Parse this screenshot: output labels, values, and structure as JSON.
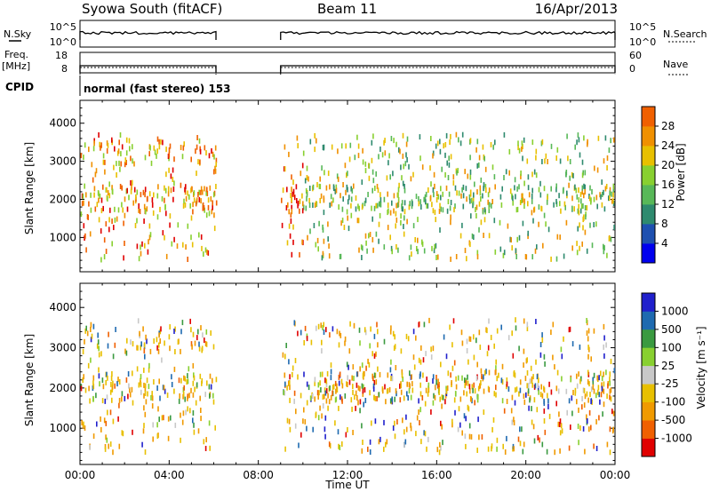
{
  "header": {
    "title": "Syowa South (fitACF)",
    "beam": "Beam 11",
    "date": "16/Apr/2013"
  },
  "params": {
    "nsky_label": "N.Sky",
    "nsky_ticks": [
      "10^5",
      "10^0"
    ],
    "nsearch_label": "N.Search",
    "nsearch_ticks": [
      "10^5",
      "10^0"
    ],
    "freq_label_1": "Freq.",
    "freq_label_2": "[MHz]",
    "freq_ticks": [
      "18",
      "8"
    ],
    "nave_label": "Nave",
    "nave_ticks": [
      "60",
      "0"
    ],
    "cpid_label": "CPID",
    "cpid_value": "normal (fast stereo) 153"
  },
  "colors": {
    "power_scale": [
      "#0000ee",
      "#1e50b0",
      "#2e8a6e",
      "#58b858",
      "#88d030",
      "#e8c000",
      "#f09000",
      "#f06000",
      "#e00000"
    ],
    "velocity_scale": [
      "#e00000",
      "#f06000",
      "#f09a00",
      "#e8c000",
      "#c8c8c8",
      "#88d030",
      "#3a9a40",
      "#1e6ab0",
      "#2020cc"
    ]
  },
  "chart_data": [
    {
      "type": "scatter",
      "name": "power",
      "ylabel": "Slant Range [km]",
      "xlabel": "Time UT",
      "xlim": [
        0,
        24
      ],
      "ylim": [
        100,
        4600
      ],
      "yticks": [
        "1000",
        "2000",
        "3000",
        "4000"
      ],
      "xticks": [
        "00:00",
        "04:00",
        "08:00",
        "12:00",
        "16:00",
        "20:00",
        "00:00"
      ],
      "data_gap_hours": [
        6.1,
        9.0
      ],
      "colorbar": {
        "label": "Power [dB]",
        "ticks": [
          "4",
          "8",
          "12",
          "16",
          "20",
          "24",
          "28"
        ],
        "range": [
          0,
          30
        ]
      }
    },
    {
      "type": "scatter",
      "name": "velocity",
      "ylabel": "Slant Range [km]",
      "xlabel": "Time UT",
      "xlim": [
        0,
        24
      ],
      "ylim": [
        100,
        4600
      ],
      "yticks": [
        "1000",
        "2000",
        "3000",
        "4000"
      ],
      "xticks": [
        "00:00",
        "04:00",
        "08:00",
        "12:00",
        "16:00",
        "20:00",
        "00:00"
      ],
      "data_gap_hours": [
        6.1,
        9.0
      ],
      "colorbar": {
        "label": "Velocity [m s⁻¹]",
        "ticks": [
          "-1000",
          "-500",
          "-100",
          "-25",
          "25",
          "100",
          "500",
          "1000"
        ]
      }
    }
  ]
}
